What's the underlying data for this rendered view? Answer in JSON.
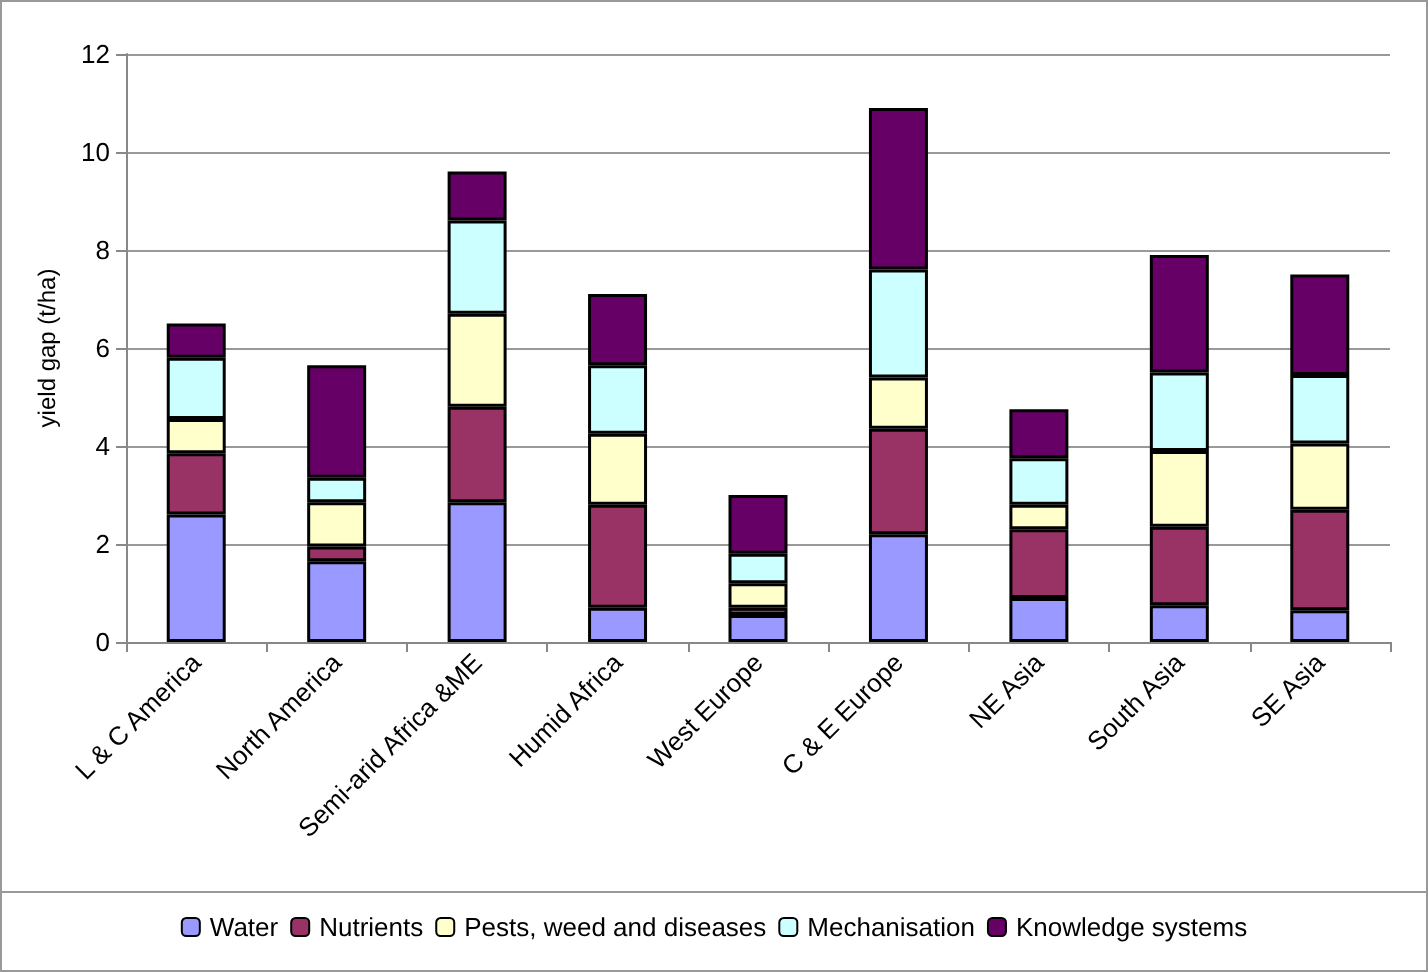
{
  "chart_data": {
    "type": "bar",
    "stacked": true,
    "ylabel": "yield gap (t/ha)",
    "categories": [
      "L & C America",
      "North America",
      "Semi-arid Africa &ME",
      "Humid Africa",
      "West Europe",
      "C & E Europe",
      "NE Asia",
      "South Asia",
      "SE Asia"
    ],
    "series": [
      {
        "name": "Water",
        "color": "#9999ff",
        "values": [
          2.6,
          1.65,
          2.85,
          0.7,
          0.55,
          2.2,
          0.9,
          0.75,
          0.65
        ]
      },
      {
        "name": "Nutrients",
        "color": "#993366",
        "values": [
          1.25,
          0.3,
          1.95,
          2.1,
          0.15,
          2.15,
          1.4,
          1.6,
          2.05
        ]
      },
      {
        "name": "Pests, weed and diseases",
        "color": "#ffffcc",
        "values": [
          0.7,
          0.9,
          1.9,
          1.45,
          0.5,
          1.05,
          0.5,
          1.55,
          1.35
        ]
      },
      {
        "name": "Mechanisation",
        "color": "#ccffff",
        "values": [
          1.25,
          0.5,
          1.9,
          1.4,
          0.6,
          2.2,
          0.95,
          1.6,
          1.4
        ]
      },
      {
        "name": "Knowledge systems",
        "color": "#660066",
        "values": [
          0.7,
          2.3,
          1.0,
          1.45,
          1.2,
          3.3,
          1.0,
          2.4,
          2.05
        ]
      }
    ],
    "ylim": [
      0,
      12
    ],
    "yticks": [
      0,
      2,
      4,
      6,
      8,
      10,
      12
    ],
    "grid": "y",
    "legend": "bottom"
  }
}
